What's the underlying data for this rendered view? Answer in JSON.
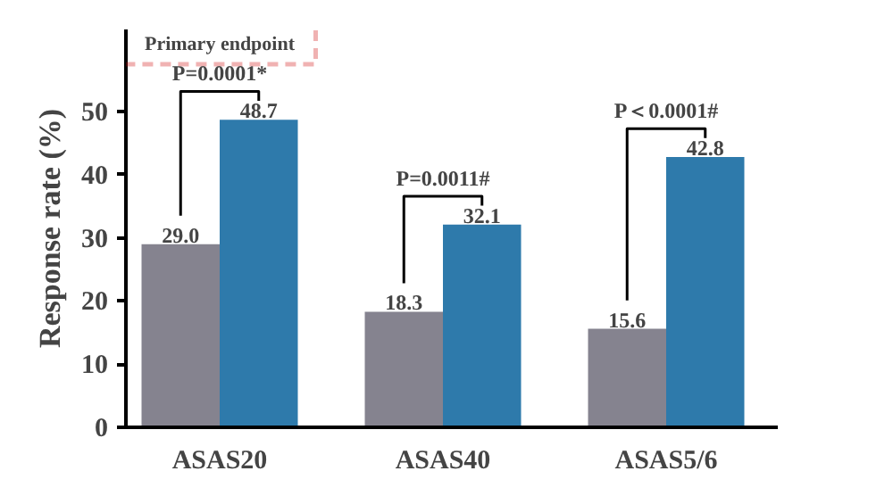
{
  "chart_data": {
    "type": "bar",
    "ylabel": "Response rate (%)",
    "categories": [
      "ASAS20",
      "ASAS40",
      "ASAS5/6"
    ],
    "series": [
      {
        "color": "#85838f",
        "values": [
          29.0,
          18.3,
          15.6
        ],
        "value_labels": [
          "29.0",
          "18.3",
          "15.6"
        ]
      },
      {
        "color": "#2e7aab",
        "values": [
          48.7,
          32.1,
          42.8
        ],
        "value_labels": [
          "48.7",
          "32.1",
          "42.8"
        ]
      }
    ],
    "ylim": [
      0,
      63
    ],
    "yticks": [
      0,
      10,
      20,
      30,
      40,
      50
    ],
    "grid": false,
    "annotations": [
      "Primary endpoint",
      "P=0.0001*",
      "P=0.0011#",
      "P＜0.0001#"
    ]
  }
}
